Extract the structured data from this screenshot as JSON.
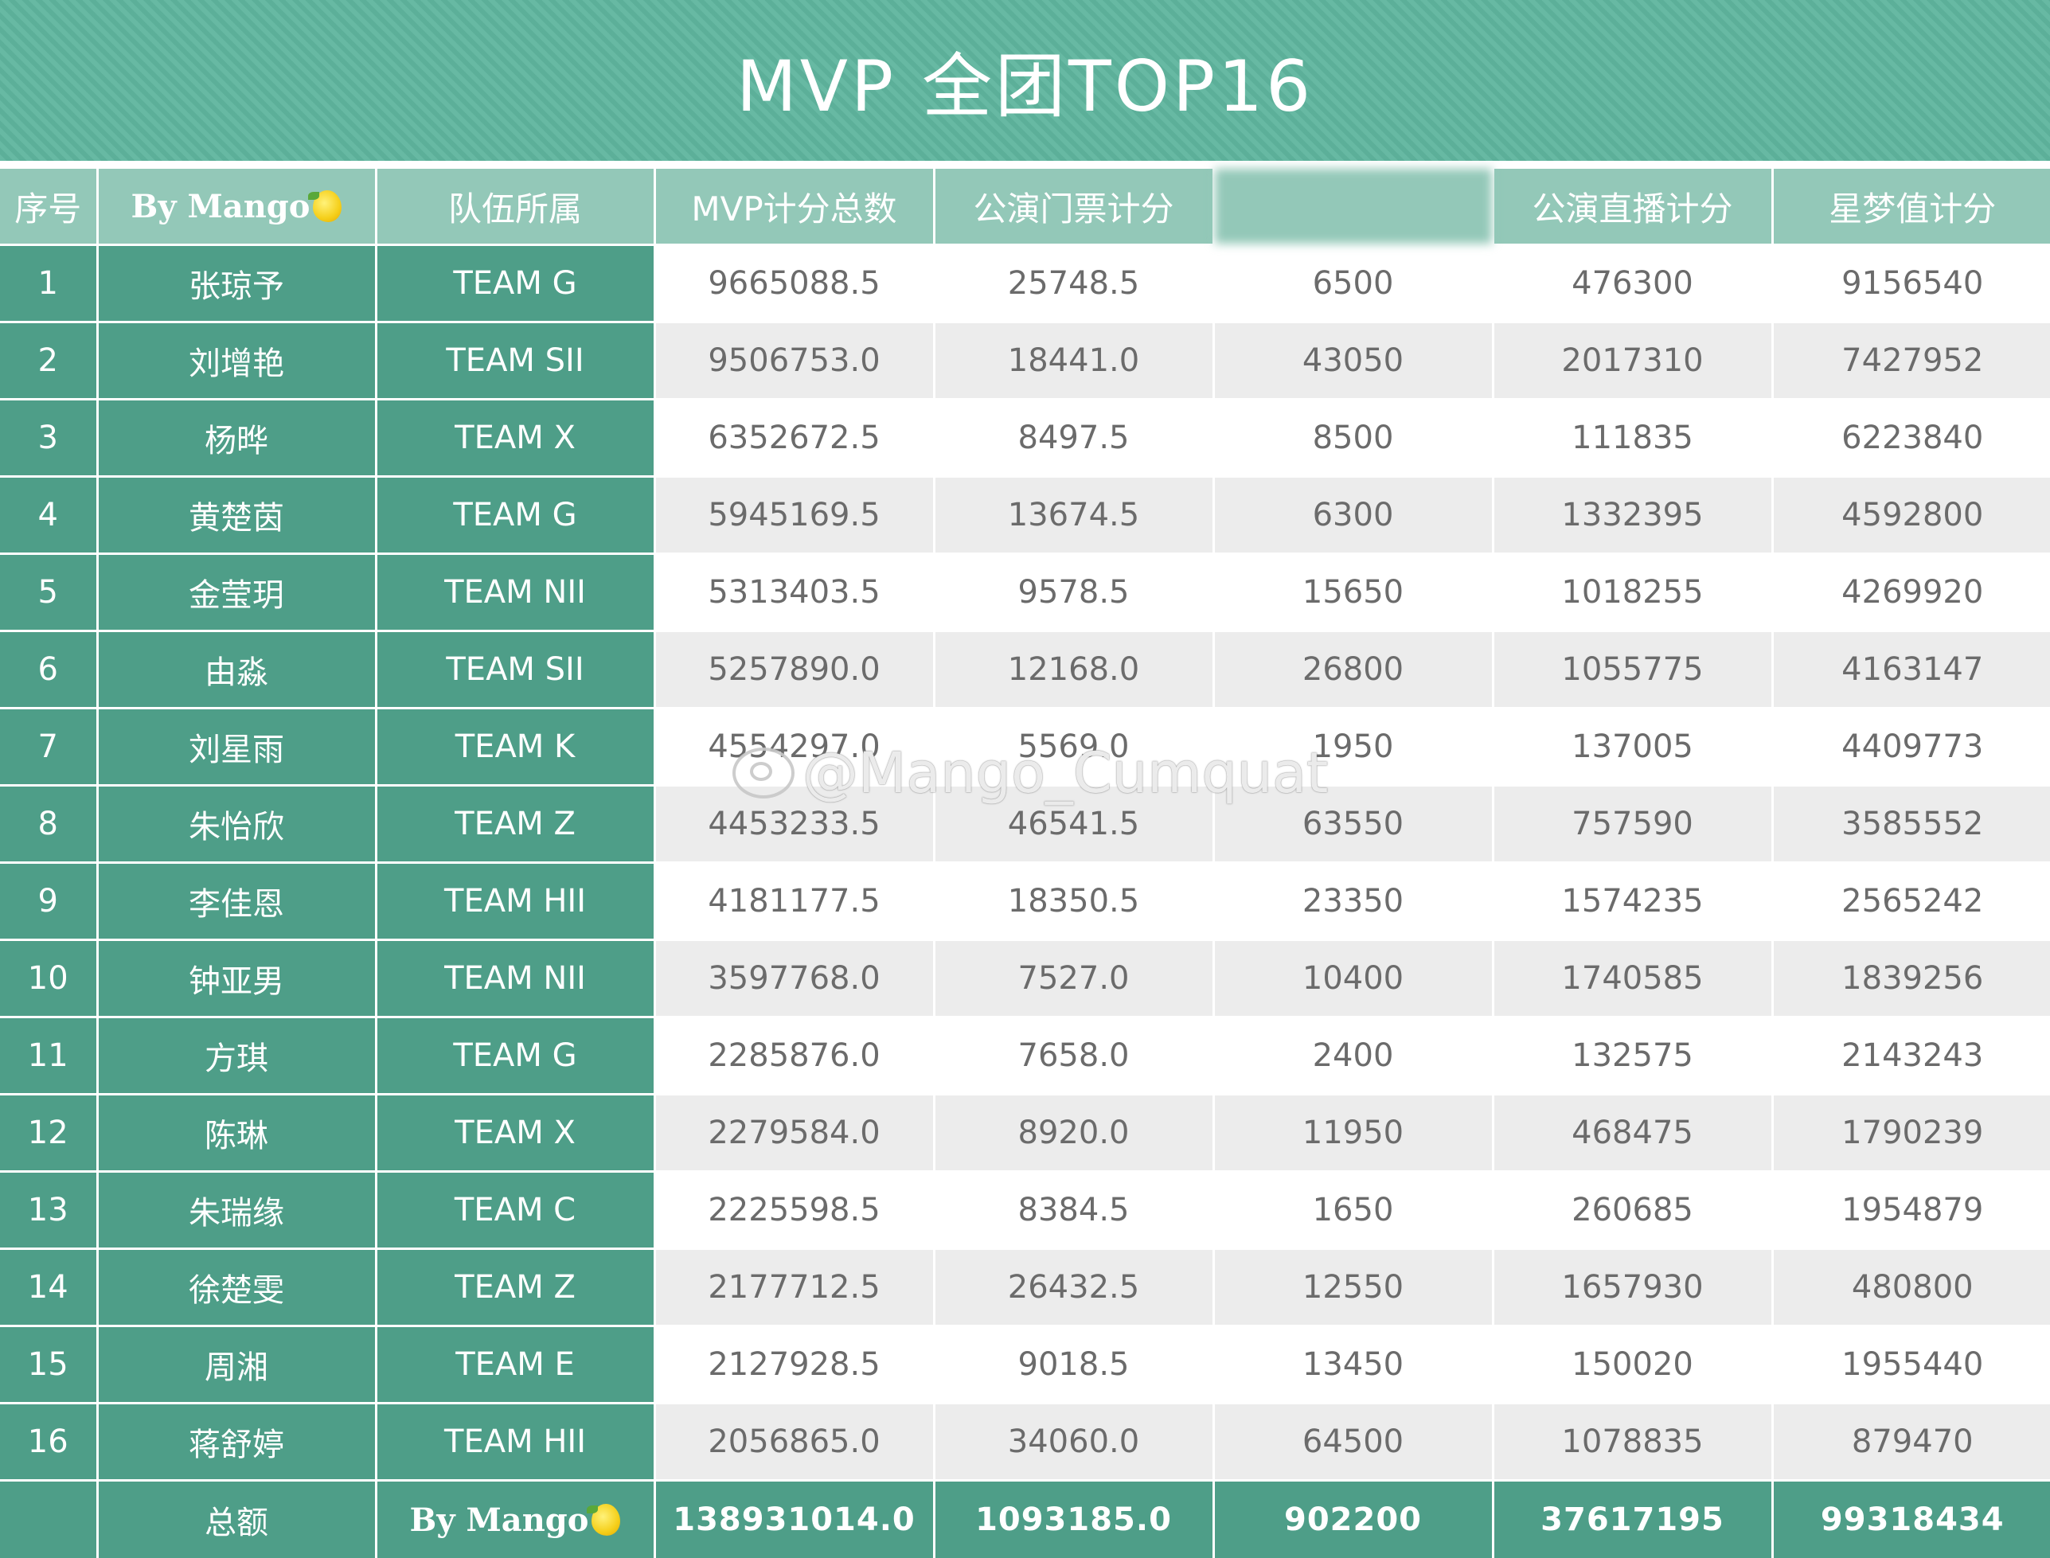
{
  "title": "MVP 全团TOP16",
  "headers": [
    "序号",
    "By Mango",
    "队伍所属",
    "MVP计分总数",
    "公演门票计分",
    "",
    "公演直播计分",
    "星梦值计分"
  ],
  "rows": [
    {
      "idx": "1",
      "name": "张琼予",
      "team": "TEAM G",
      "total": "9665088.5",
      "ticket": "25748.5",
      "col6": "6500",
      "live": "476300",
      "star": "9156540"
    },
    {
      "idx": "2",
      "name": "刘增艳",
      "team": "TEAM SII",
      "total": "9506753.0",
      "ticket": "18441.0",
      "col6": "43050",
      "live": "2017310",
      "star": "7427952"
    },
    {
      "idx": "3",
      "name": "杨晔",
      "team": "TEAM X",
      "total": "6352672.5",
      "ticket": "8497.5",
      "col6": "8500",
      "live": "111835",
      "star": "6223840"
    },
    {
      "idx": "4",
      "name": "黄楚茵",
      "team": "TEAM G",
      "total": "5945169.5",
      "ticket": "13674.5",
      "col6": "6300",
      "live": "1332395",
      "star": "4592800"
    },
    {
      "idx": "5",
      "name": "金莹玥",
      "team": "TEAM NII",
      "total": "5313403.5",
      "ticket": "9578.5",
      "col6": "15650",
      "live": "1018255",
      "star": "4269920"
    },
    {
      "idx": "6",
      "name": "由淼",
      "team": "TEAM SII",
      "total": "5257890.0",
      "ticket": "12168.0",
      "col6": "26800",
      "live": "1055775",
      "star": "4163147"
    },
    {
      "idx": "7",
      "name": "刘星雨",
      "team": "TEAM K",
      "total": "4554297.0",
      "ticket": "5569.0",
      "col6": "1950",
      "live": "137005",
      "star": "4409773"
    },
    {
      "idx": "8",
      "name": "朱怡欣",
      "team": "TEAM Z",
      "total": "4453233.5",
      "ticket": "46541.5",
      "col6": "63550",
      "live": "757590",
      "star": "3585552"
    },
    {
      "idx": "9",
      "name": "李佳恩",
      "team": "TEAM HII",
      "total": "4181177.5",
      "ticket": "18350.5",
      "col6": "23350",
      "live": "1574235",
      "star": "2565242"
    },
    {
      "idx": "10",
      "name": "钟亚男",
      "team": "TEAM NII",
      "total": "3597768.0",
      "ticket": "7527.0",
      "col6": "10400",
      "live": "1740585",
      "star": "1839256"
    },
    {
      "idx": "11",
      "name": "方琪",
      "team": "TEAM G",
      "total": "2285876.0",
      "ticket": "7658.0",
      "col6": "2400",
      "live": "132575",
      "star": "2143243"
    },
    {
      "idx": "12",
      "name": "陈琳",
      "team": "TEAM X",
      "total": "2279584.0",
      "ticket": "8920.0",
      "col6": "11950",
      "live": "468475",
      "star": "1790239"
    },
    {
      "idx": "13",
      "name": "朱瑞缘",
      "team": "TEAM C",
      "total": "2225598.5",
      "ticket": "8384.5",
      "col6": "1650",
      "live": "260685",
      "star": "1954879"
    },
    {
      "idx": "14",
      "name": "徐楚雯",
      "team": "TEAM Z",
      "total": "2177712.5",
      "ticket": "26432.5",
      "col6": "12550",
      "live": "1657930",
      "star": "480800"
    },
    {
      "idx": "15",
      "name": "周湘",
      "team": "TEAM E",
      "total": "2127928.5",
      "ticket": "9018.5",
      "col6": "13450",
      "live": "150020",
      "star": "1955440"
    },
    {
      "idx": "16",
      "name": "蒋舒婷",
      "team": "TEAM HII",
      "total": "2056865.0",
      "ticket": "34060.0",
      "col6": "64500",
      "live": "1078835",
      "star": "879470"
    }
  ],
  "footer": {
    "label": "总额",
    "brand": "By Mango",
    "total": "138931014.0",
    "ticket": "1093185.0",
    "col6": "902200",
    "live": "37617195",
    "star": "99318434"
  },
  "watermark": "@Mango_Cumquat",
  "colors": {
    "banner": "#5fb59e",
    "header": "#93c8b8",
    "dark_cell": "#4e9e88",
    "stripe": "#ececec"
  }
}
